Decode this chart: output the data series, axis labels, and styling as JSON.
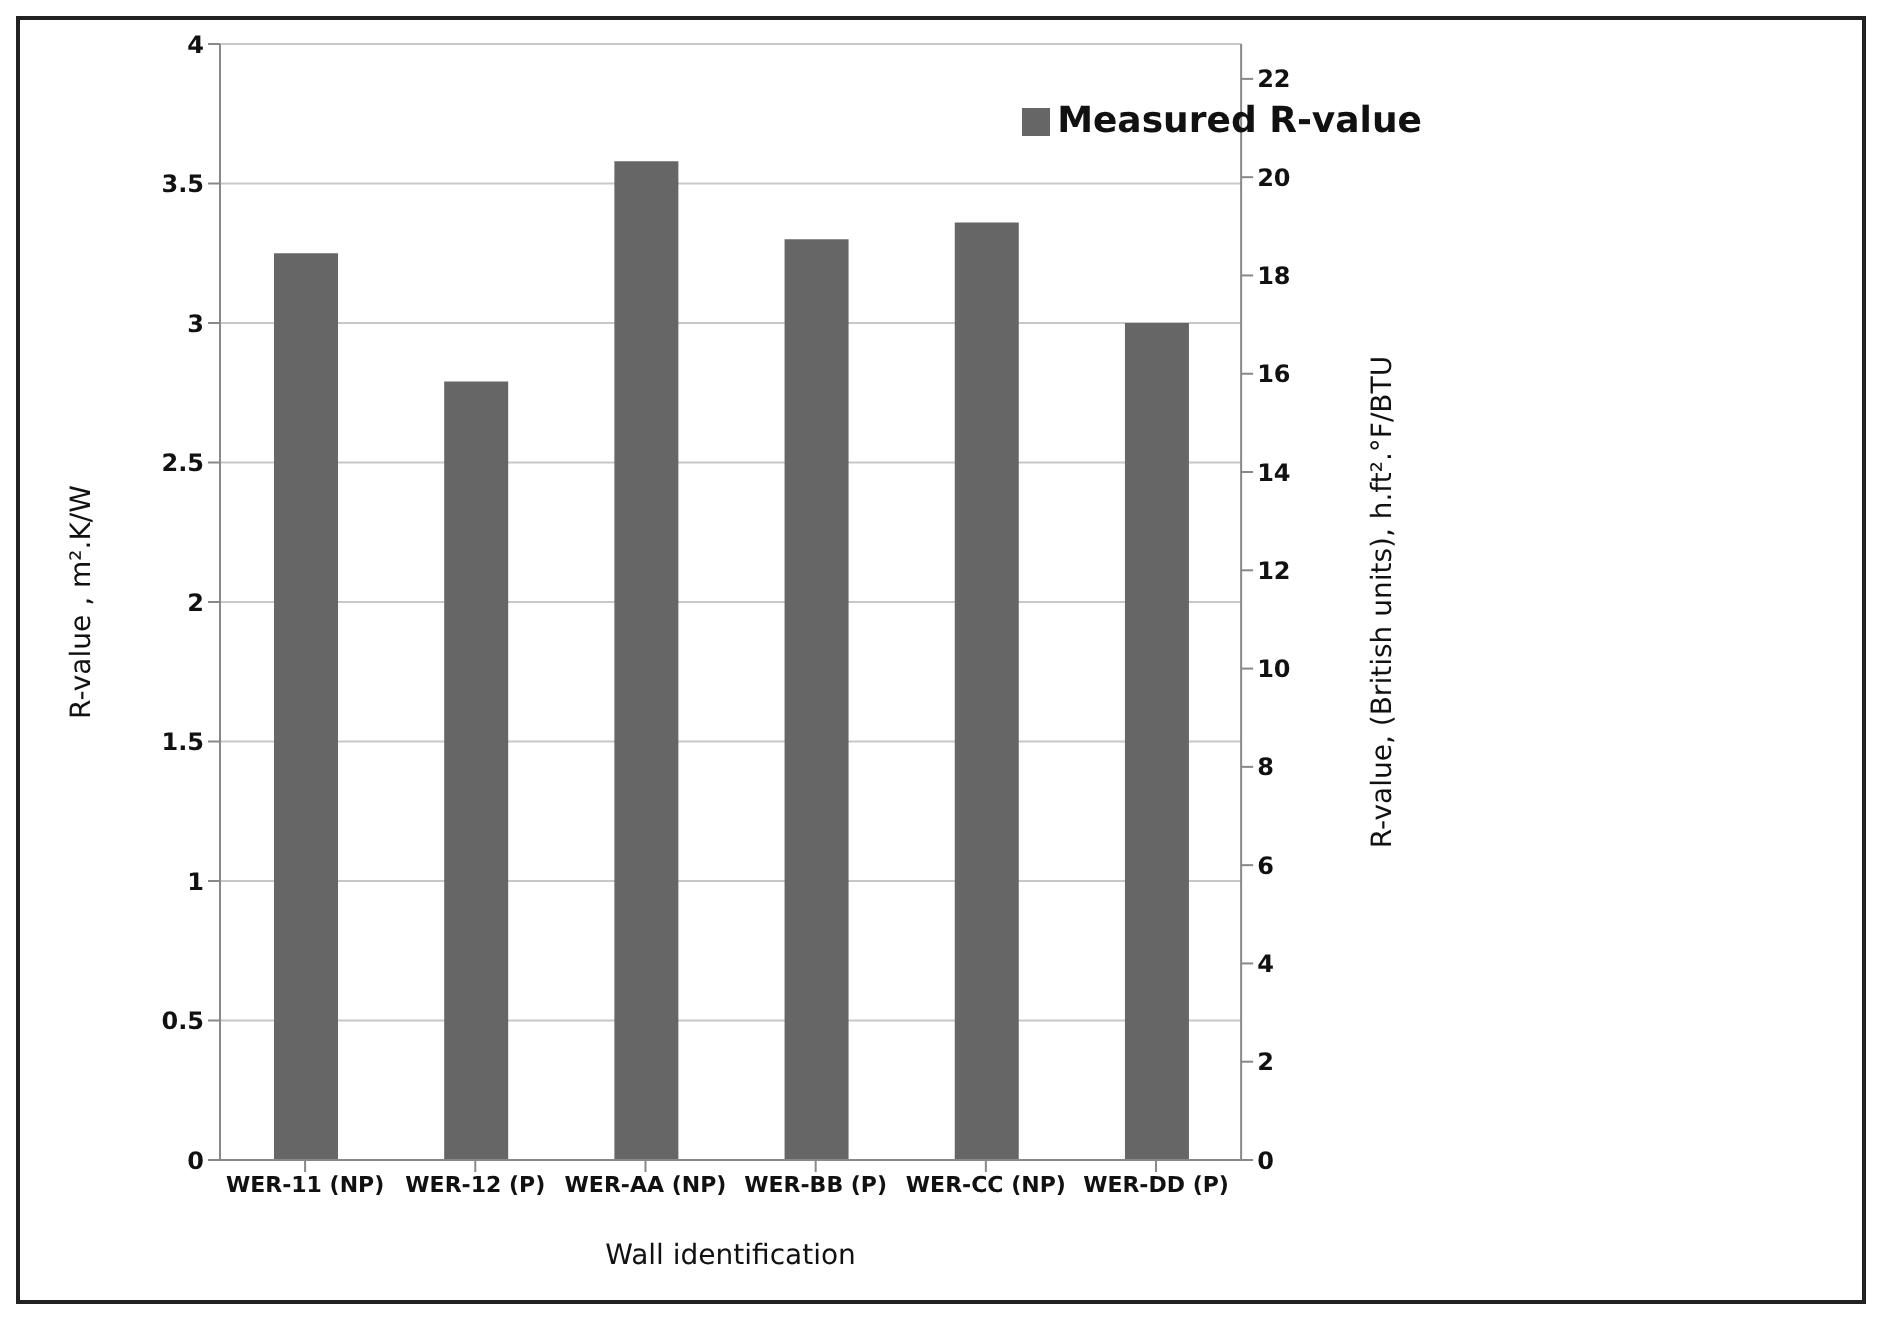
{
  "chart_data": {
    "type": "bar",
    "xlabel": "Wall identification",
    "ylabel": "R-value , m².K/W",
    "y2label": "R-value, (British units), h.ft².°F/BTU",
    "categories": [
      "WER-11 (NP)",
      "WER-12 (P)",
      "WER-AA (NP)",
      "WER-BB (P)",
      "WER-CC (NP)",
      "WER-DD (P)"
    ],
    "series": [
      {
        "name": "Measured R-value",
        "color": "#666666",
        "values": [
          3.25,
          2.79,
          3.58,
          3.3,
          3.36,
          3.0
        ]
      }
    ],
    "ylim": [
      0,
      4
    ],
    "yticks": [
      0,
      {
        "value": 0.5,
        "label": "0.5"
      },
      1,
      {
        "value": 1.5,
        "label": "1.5"
      },
      2,
      {
        "value": 2.5,
        "label": "2.5"
      },
      3,
      {
        "value": 3.5,
        "label": "3.5"
      },
      4
    ],
    "y2lim": [
      0,
      22.71
    ],
    "y2ticks": [
      0,
      2,
      4,
      6,
      8,
      10,
      12,
      14,
      16,
      18,
      20,
      22
    ],
    "grid": "y",
    "legend": "top right"
  }
}
